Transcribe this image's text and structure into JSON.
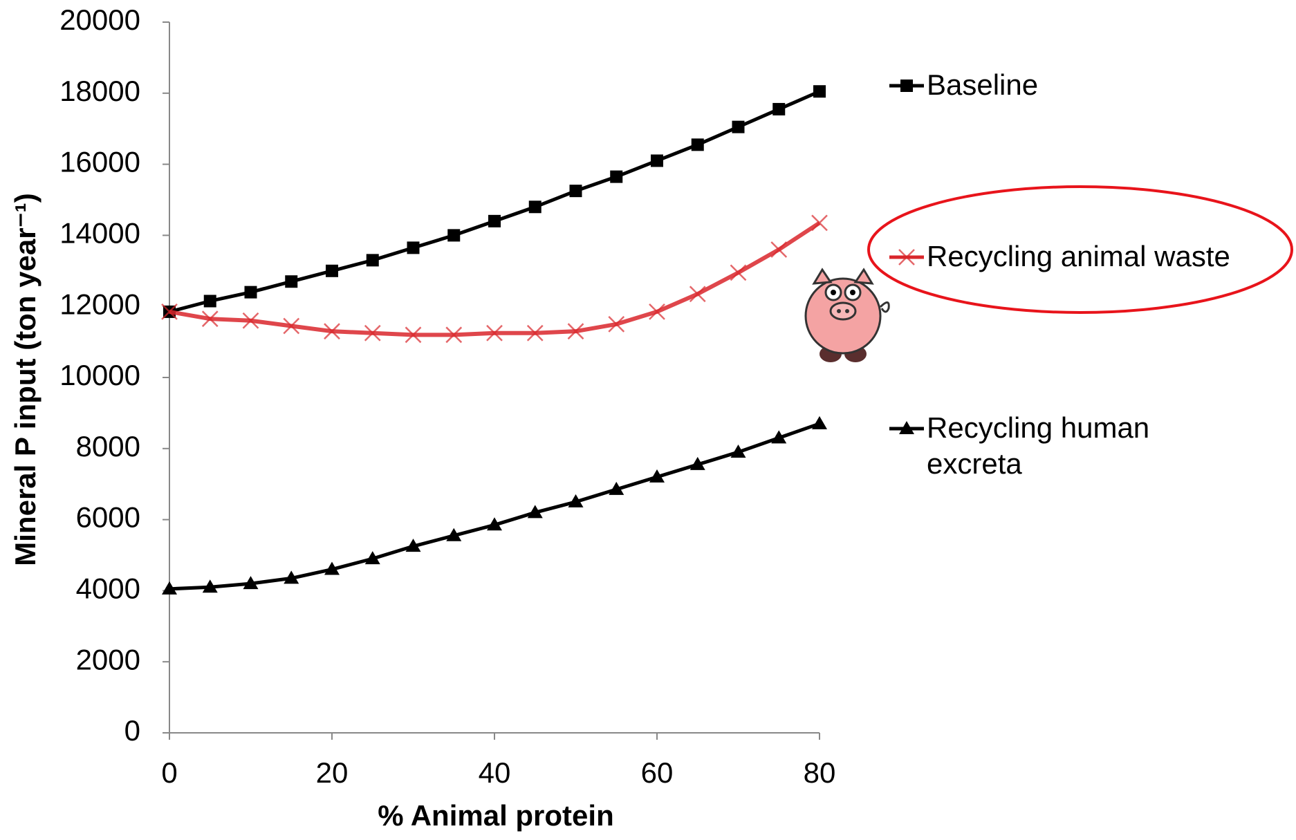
{
  "chart_data": {
    "type": "line",
    "x_label": "% Animal protein",
    "y_label": "Mineral P  input (ton year⁻¹)",
    "x": [
      0,
      5,
      10,
      15,
      20,
      25,
      30,
      35,
      40,
      45,
      50,
      55,
      60,
      65,
      70,
      75,
      80
    ],
    "series": [
      {
        "name": "Baseline",
        "color": "#000000",
        "marker": "square",
        "values": [
          11850,
          12150,
          12400,
          12700,
          13000,
          13300,
          13650,
          14000,
          14400,
          14800,
          15250,
          15650,
          16100,
          16550,
          17050,
          17550,
          18050
        ]
      },
      {
        "name": "Recycling animal waste",
        "color": "#d9262b",
        "marker": "x",
        "values": [
          11850,
          11650,
          11600,
          11450,
          11300,
          11250,
          11200,
          11200,
          11250,
          11250,
          11300,
          11500,
          11850,
          12350,
          12950,
          13600,
          14350
        ]
      },
      {
        "name": "Recycling human excreta",
        "color": "#000000",
        "marker": "triangle",
        "values": [
          4050,
          4100,
          4200,
          4350,
          4600,
          4900,
          5250,
          5550,
          5850,
          6200,
          6500,
          6850,
          7200,
          7550,
          7900,
          8300,
          8700
        ]
      }
    ],
    "xlim": [
      0,
      80
    ],
    "xticks": [
      0,
      20,
      40,
      60,
      80
    ],
    "ylim": [
      0,
      20000
    ],
    "yticks": [
      0,
      2000,
      4000,
      6000,
      8000,
      10000,
      12000,
      14000,
      16000,
      18000,
      20000
    ],
    "legend": "right"
  }
}
